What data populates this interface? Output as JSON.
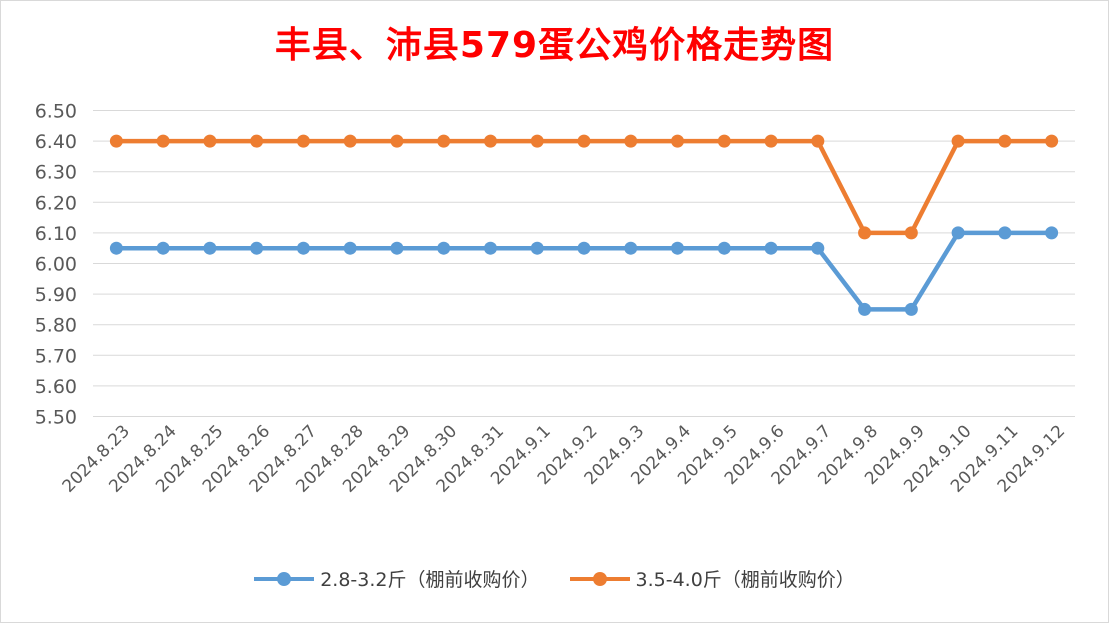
{
  "chart_data": {
    "type": "line",
    "title": "丰县、沛县579蛋公鸡价格走势图",
    "xlabel": "",
    "ylabel": "",
    "ylim": [
      5.5,
      6.5
    ],
    "yticks": [
      "6.50",
      "6.40",
      "6.30",
      "6.20",
      "6.10",
      "6.00",
      "5.90",
      "5.80",
      "5.70",
      "5.60",
      "5.50"
    ],
    "categories": [
      "2024.8.23",
      "2024.8.24",
      "2024.8.25",
      "2024.8.26",
      "2024.8.27",
      "2024.8.28",
      "2024.8.29",
      "2024.8.30",
      "2024.8.31",
      "2024.9.1",
      "2024.9.2",
      "2024.9.3",
      "2024.9.4",
      "2024.9.5",
      "2024.9.6",
      "2024.9.7",
      "2024.9.8",
      "2024.9.9",
      "2024.9.10",
      "2024.9.11",
      "2024.9.12"
    ],
    "series": [
      {
        "name": "2.8-3.2斤（棚前收购价）",
        "color": "#5b9bd5",
        "values": [
          6.05,
          6.05,
          6.05,
          6.05,
          6.05,
          6.05,
          6.05,
          6.05,
          6.05,
          6.05,
          6.05,
          6.05,
          6.05,
          6.05,
          6.05,
          6.05,
          5.85,
          5.85,
          6.1,
          6.1,
          6.1
        ]
      },
      {
        "name": "3.5-4.0斤（棚前收购价）",
        "color": "#ed7d31",
        "values": [
          6.4,
          6.4,
          6.4,
          6.4,
          6.4,
          6.4,
          6.4,
          6.4,
          6.4,
          6.4,
          6.4,
          6.4,
          6.4,
          6.4,
          6.4,
          6.4,
          6.1,
          6.1,
          6.4,
          6.4,
          6.4
        ]
      }
    ],
    "grid": true,
    "legend_position": "bottom"
  }
}
